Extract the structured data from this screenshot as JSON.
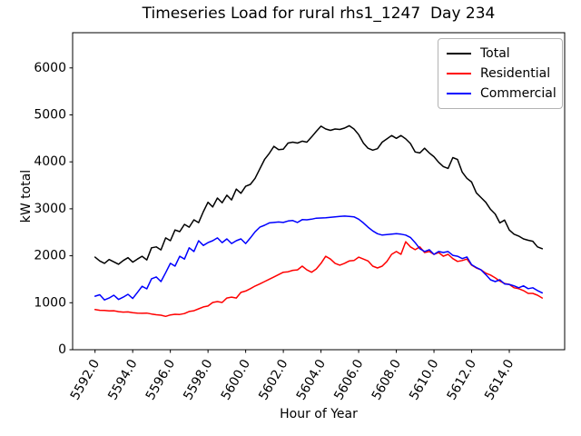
{
  "chart_data": {
    "type": "line",
    "title": "Timeseries Load for rural rhs1_1247  Day 234",
    "xlabel": "Hour of Year",
    "ylabel": "kW total",
    "grid": false,
    "legend_position": "upper right",
    "xlim": [
      5590.81,
      5616.94
    ],
    "ylim": [
      0,
      6750
    ],
    "xtick_values": [
      5592,
      5594,
      5596,
      5598,
      5600,
      5602,
      5604,
      5606,
      5608,
      5610,
      5612,
      5614
    ],
    "xtick_labels": [
      "5592.0",
      "5594.0",
      "5596.0",
      "5598.0",
      "5600.0",
      "5602.0",
      "5604.0",
      "5606.0",
      "5608.0",
      "5610.0",
      "5612.0",
      "5614.0"
    ],
    "xtick_rotation": 60,
    "ytick_values": [
      0,
      1000,
      2000,
      3000,
      4000,
      5000,
      6000
    ],
    "ytick_labels": [
      "0",
      "1000",
      "2000",
      "3000",
      "4000",
      "5000",
      "6000"
    ],
    "x": [
      5592.0,
      5592.25,
      5592.5,
      5592.75,
      5593.0,
      5593.25,
      5593.5,
      5593.75,
      5594.0,
      5594.25,
      5594.5,
      5594.75,
      5595.0,
      5595.25,
      5595.5,
      5595.75,
      5596.0,
      5596.25,
      5596.5,
      5596.75,
      5597.0,
      5597.25,
      5597.5,
      5597.75,
      5598.0,
      5598.25,
      5598.5,
      5598.75,
      5599.0,
      5599.25,
      5599.5,
      5599.75,
      5600.0,
      5600.25,
      5600.5,
      5600.75,
      5601.0,
      5601.25,
      5601.5,
      5601.75,
      5602.0,
      5602.25,
      5602.5,
      5602.75,
      5603.0,
      5603.25,
      5603.5,
      5603.75,
      5604.0,
      5604.25,
      5604.5,
      5604.75,
      5605.0,
      5605.25,
      5605.5,
      5605.75,
      5606.0,
      5606.25,
      5606.5,
      5606.75,
      5607.0,
      5607.25,
      5607.5,
      5607.75,
      5608.0,
      5608.25,
      5608.5,
      5608.75,
      5609.0,
      5609.25,
      5609.5,
      5609.75,
      5610.0,
      5610.25,
      5610.5,
      5610.75,
      5611.0,
      5611.25,
      5611.5,
      5611.75,
      5612.0,
      5612.25,
      5612.5,
      5612.75,
      5613.0,
      5613.25,
      5613.5,
      5613.75,
      5614.0,
      5614.25,
      5614.5,
      5614.75,
      5615.0,
      5615.25,
      5615.5,
      5615.75
    ],
    "series": [
      {
        "name": "Total",
        "color": "#000000",
        "values": [
          1970,
          1890,
          1840,
          1920,
          1870,
          1820,
          1900,
          1960,
          1865,
          1930,
          1990,
          1910,
          2170,
          2190,
          2125,
          2380,
          2320,
          2550,
          2515,
          2670,
          2610,
          2765,
          2705,
          2940,
          3140,
          3040,
          3230,
          3130,
          3290,
          3190,
          3420,
          3330,
          3480,
          3520,
          3650,
          3850,
          4050,
          4180,
          4330,
          4260,
          4270,
          4400,
          4420,
          4400,
          4440,
          4420,
          4530,
          4650,
          4760,
          4700,
          4670,
          4700,
          4690,
          4720,
          4770,
          4700,
          4580,
          4400,
          4290,
          4250,
          4280,
          4420,
          4490,
          4560,
          4500,
          4560,
          4490,
          4390,
          4210,
          4190,
          4290,
          4190,
          4110,
          3990,
          3900,
          3860,
          4090,
          4050,
          3780,
          3650,
          3570,
          3340,
          3240,
          3140,
          2990,
          2890,
          2700,
          2760,
          2550,
          2460,
          2420,
          2360,
          2330,
          2310,
          2190,
          2150
        ]
      },
      {
        "name": "Residential",
        "color": "#ff0000",
        "values": [
          855,
          840,
          835,
          825,
          830,
          810,
          800,
          805,
          790,
          780,
          775,
          780,
          760,
          745,
          735,
          710,
          740,
          755,
          750,
          770,
          815,
          830,
          870,
          910,
          930,
          1005,
          1025,
          1005,
          1100,
          1120,
          1100,
          1220,
          1250,
          1300,
          1355,
          1400,
          1450,
          1500,
          1550,
          1600,
          1650,
          1660,
          1690,
          1700,
          1780,
          1700,
          1650,
          1720,
          1840,
          1990,
          1930,
          1840,
          1800,
          1840,
          1890,
          1900,
          1970,
          1930,
          1890,
          1780,
          1740,
          1780,
          1880,
          2030,
          2090,
          2030,
          2300,
          2190,
          2130,
          2190,
          2070,
          2090,
          2030,
          2070,
          1990,
          2030,
          1940,
          1880,
          1900,
          1930,
          1800,
          1740,
          1700,
          1630,
          1590,
          1530,
          1460,
          1410,
          1390,
          1320,
          1300,
          1260,
          1200,
          1200,
          1160,
          1100
        ]
      },
      {
        "name": "Commercial",
        "color": "#0000ff",
        "values": [
          1140,
          1170,
          1060,
          1100,
          1160,
          1070,
          1120,
          1180,
          1090,
          1220,
          1350,
          1295,
          1510,
          1550,
          1450,
          1640,
          1840,
          1780,
          1990,
          1930,
          2170,
          2090,
          2320,
          2220,
          2280,
          2320,
          2380,
          2280,
          2360,
          2260,
          2320,
          2360,
          2260,
          2380,
          2510,
          2610,
          2650,
          2700,
          2710,
          2720,
          2710,
          2740,
          2750,
          2710,
          2770,
          2765,
          2780,
          2800,
          2805,
          2810,
          2820,
          2830,
          2840,
          2845,
          2840,
          2830,
          2780,
          2700,
          2610,
          2530,
          2470,
          2440,
          2450,
          2460,
          2470,
          2460,
          2440,
          2390,
          2280,
          2150,
          2090,
          2130,
          2030,
          2090,
          2070,
          2090,
          2010,
          1990,
          1940,
          1975,
          1810,
          1750,
          1700,
          1600,
          1490,
          1450,
          1490,
          1400,
          1390,
          1360,
          1320,
          1360,
          1300,
          1320,
          1260,
          1210
        ]
      }
    ]
  }
}
